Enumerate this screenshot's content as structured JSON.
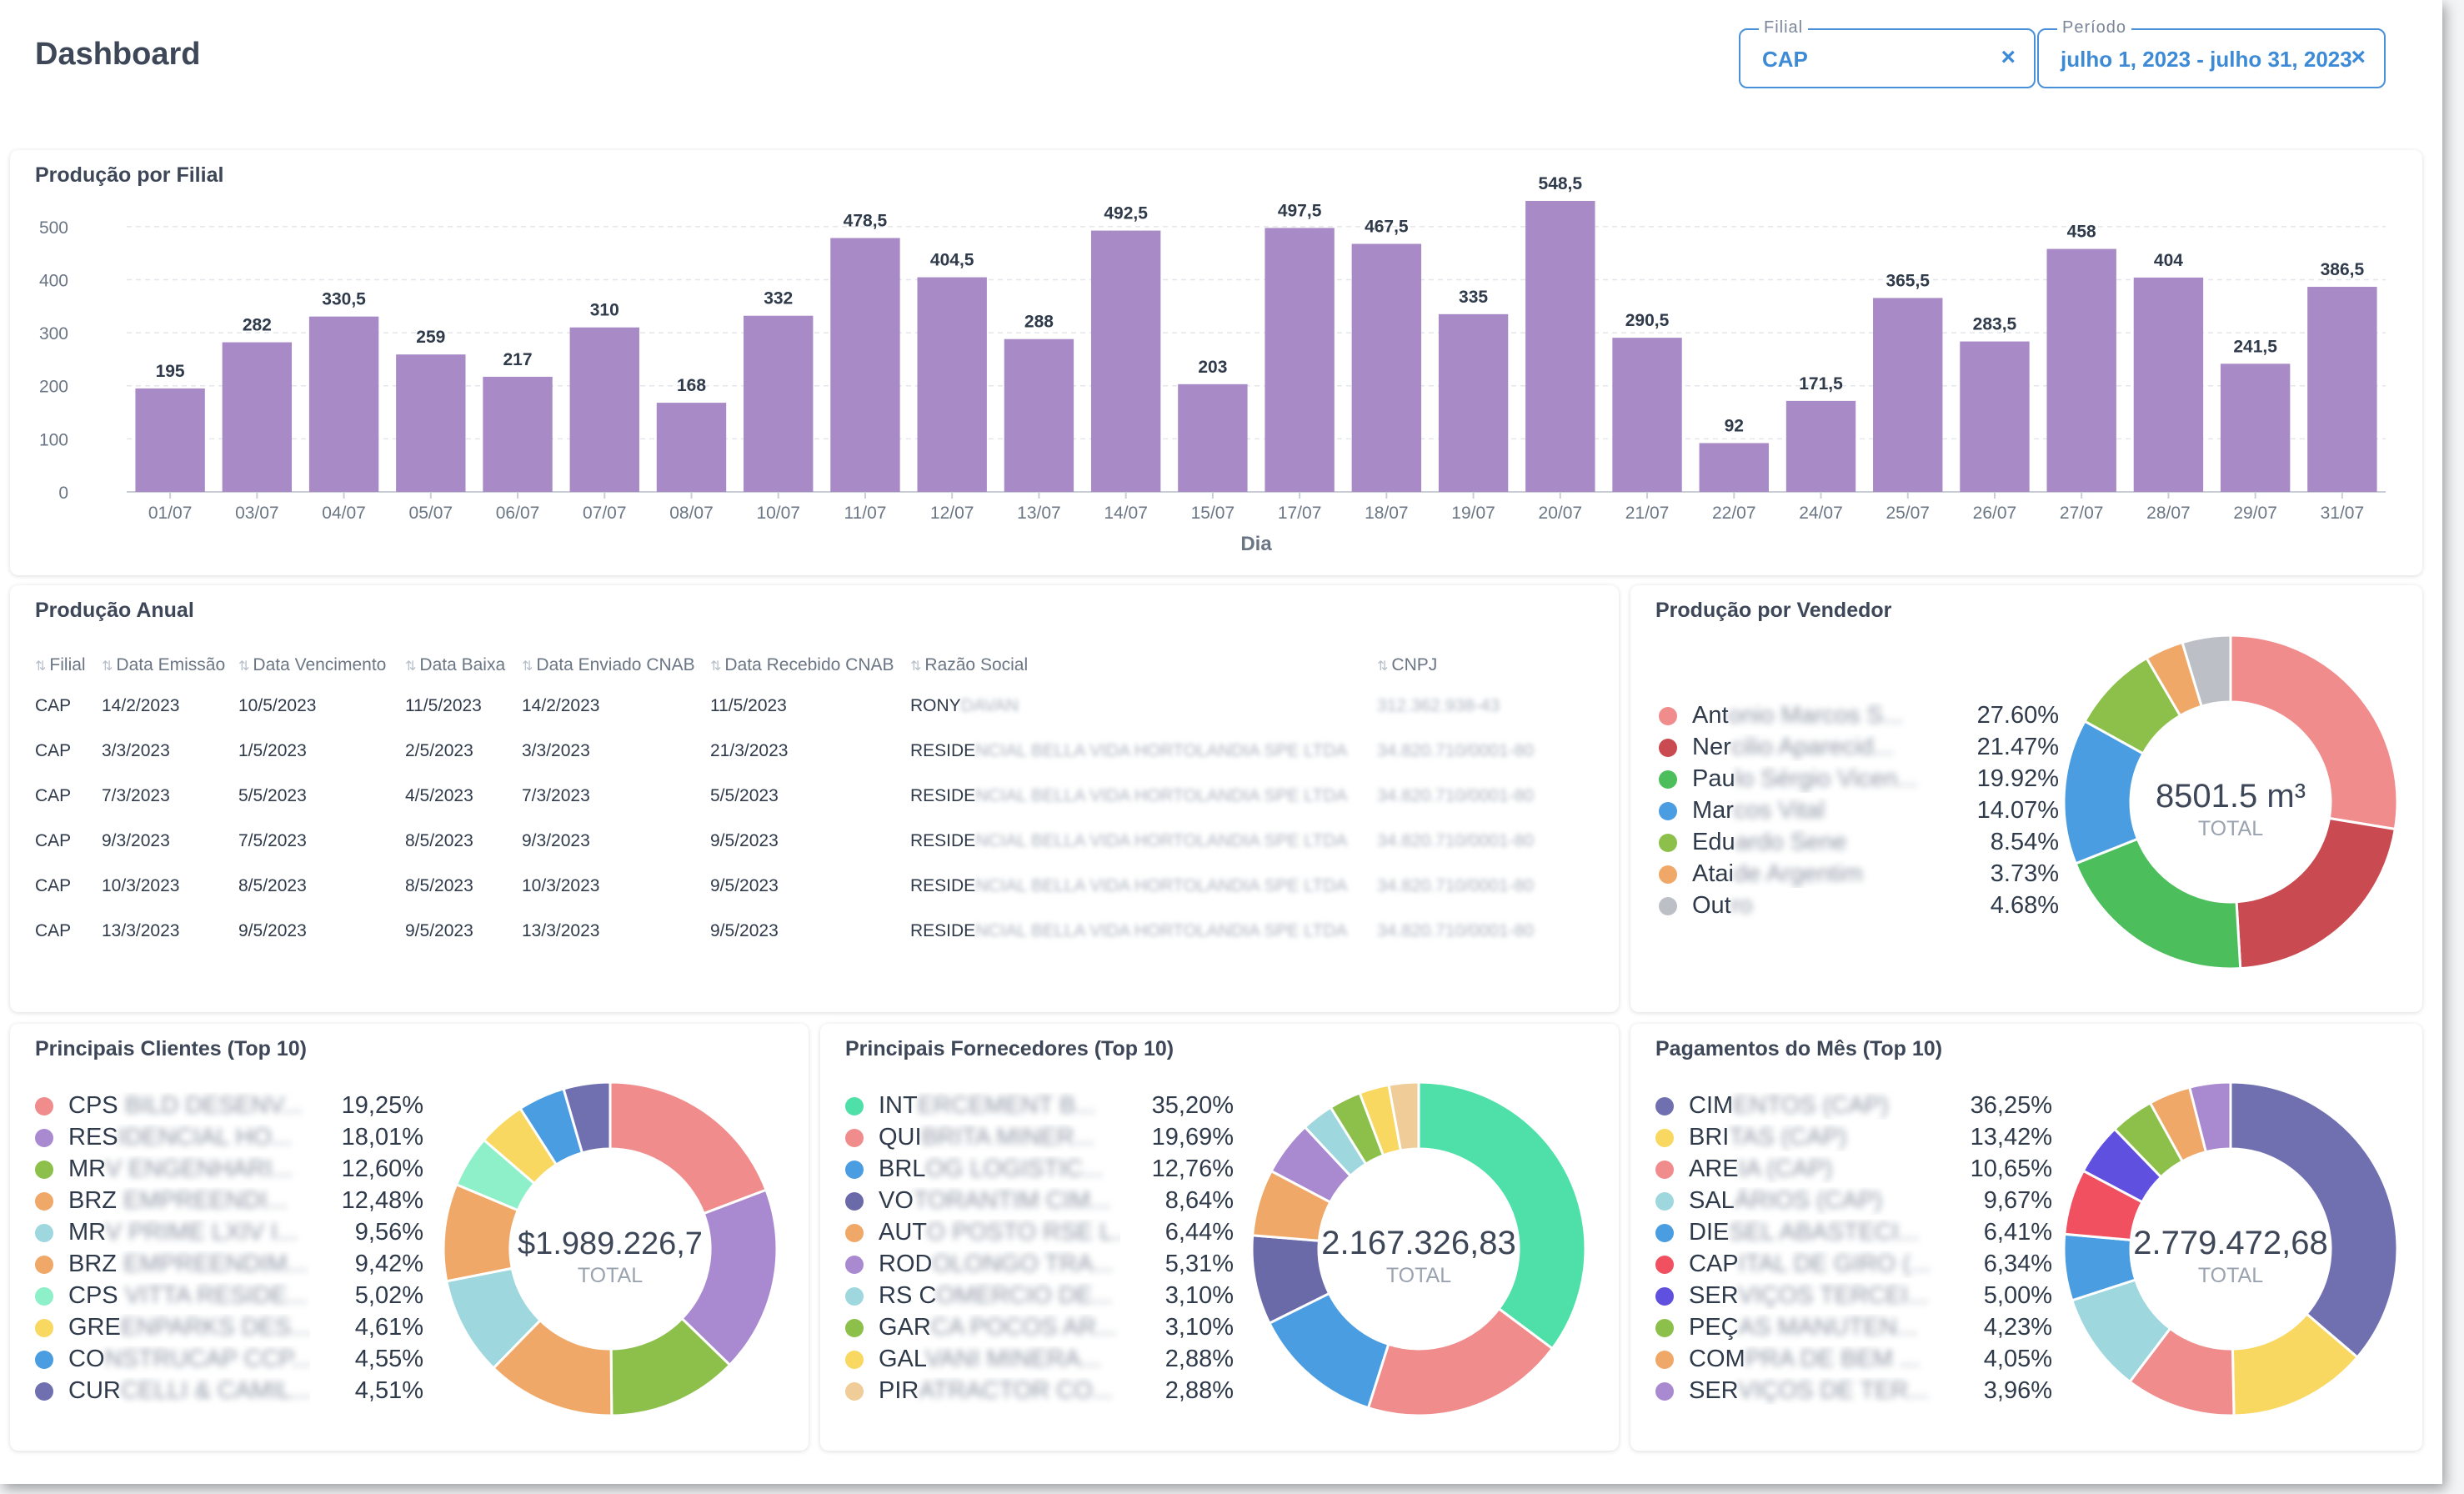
{
  "header": {
    "title": "Dashboard",
    "filters": [
      {
        "label": "Filial",
        "value": "CAP",
        "clear": "×"
      },
      {
        "label": "Período",
        "value": "julho 1, 2023 - julho 31, 2023",
        "clear": "×"
      }
    ]
  },
  "production_by_branch": {
    "title": "Produção por Filial",
    "chart_data": {
      "type": "bar",
      "title": "Produção por Filial",
      "xlabel": "Dia",
      "ylabel": "",
      "ylim": [
        0,
        550
      ],
      "yticks": [
        "0",
        "100",
        "200",
        "300",
        "400",
        "500"
      ],
      "grid": true,
      "color": "#a78ac6",
      "categories": [
        "01/07",
        "03/07",
        "04/07",
        "05/07",
        "06/07",
        "07/07",
        "08/07",
        "10/07",
        "11/07",
        "12/07",
        "13/07",
        "14/07",
        "15/07",
        "17/07",
        "18/07",
        "19/07",
        "20/07",
        "21/07",
        "22/07",
        "24/07",
        "25/07",
        "26/07",
        "27/07",
        "28/07",
        "29/07",
        "31/07"
      ],
      "values": [
        195,
        282,
        330.5,
        259,
        217,
        310,
        168,
        332,
        478.5,
        404.5,
        288,
        492.5,
        203,
        497.5,
        467.5,
        335,
        548.5,
        290.5,
        92,
        171.5,
        365.5,
        283.5,
        458,
        404,
        241.5,
        386.5
      ],
      "value_labels": [
        "195",
        "282",
        "330,5",
        "259",
        "217",
        "310",
        "168",
        "332",
        "478,5",
        "404,5",
        "288",
        "492,5",
        "203",
        "497,5",
        "467,5",
        "335",
        "548,5",
        "290,5",
        "92",
        "171,5",
        "365,5",
        "283,5",
        "458",
        "404",
        "241,5",
        "386,5"
      ]
    }
  },
  "annual_production": {
    "title": "Produção Anual",
    "columns": [
      "Filial",
      "Data Emissão",
      "Data Vencimento",
      "Data Baixa",
      "Data Enviado CNAB",
      "Data Recebido CNAB",
      "Razão Social",
      "CNPJ"
    ],
    "rows": [
      {
        "filial": "CAP",
        "emissao": "14/2/2023",
        "vencimento": "10/5/2023",
        "baixa": "11/5/2023",
        "enviado": "14/2/2023",
        "recebido": "11/5/2023",
        "razao": "RONY",
        "razao_hidden": "DAVAN",
        "cnpj_hidden": "312.362.938-43"
      },
      {
        "filial": "CAP",
        "emissao": "3/3/2023",
        "vencimento": "1/5/2023",
        "baixa": "2/5/2023",
        "enviado": "3/3/2023",
        "recebido": "21/3/2023",
        "razao": "RESIDE",
        "razao_hidden": "NCIAL BELLA VIDA HORTOLANDIA SPE LTDA",
        "cnpj_hidden": "34.820.710/0001-80"
      },
      {
        "filial": "CAP",
        "emissao": "7/3/2023",
        "vencimento": "5/5/2023",
        "baixa": "4/5/2023",
        "enviado": "7/3/2023",
        "recebido": "5/5/2023",
        "razao": "RESIDE",
        "razao_hidden": "NCIAL BELLA VIDA HORTOLANDIA SPE LTDA",
        "cnpj_hidden": "34.820.710/0001-80"
      },
      {
        "filial": "CAP",
        "emissao": "9/3/2023",
        "vencimento": "7/5/2023",
        "baixa": "8/5/2023",
        "enviado": "9/3/2023",
        "recebido": "9/5/2023",
        "razao": "RESIDE",
        "razao_hidden": "NCIAL BELLA VIDA HORTOLANDIA SPE LTDA",
        "cnpj_hidden": "34.820.710/0001-80"
      },
      {
        "filial": "CAP",
        "emissao": "10/3/2023",
        "vencimento": "8/5/2023",
        "baixa": "8/5/2023",
        "enviado": "10/3/2023",
        "recebido": "9/5/2023",
        "razao": "RESIDE",
        "razao_hidden": "NCIAL BELLA VIDA HORTOLANDIA SPE LTDA",
        "cnpj_hidden": "34.820.710/0001-80"
      },
      {
        "filial": "CAP",
        "emissao": "13/3/2023",
        "vencimento": "9/5/2023",
        "baixa": "9/5/2023",
        "enviado": "13/3/2023",
        "recebido": "9/5/2023",
        "razao": "RESIDE",
        "razao_hidden": "NCIAL BELLA VIDA HORTOLANDIA SPE LTDA",
        "cnpj_hidden": "34.820.710/0001-80"
      }
    ]
  },
  "production_by_seller": {
    "title": "Produção por Vendedor",
    "total_label": "TOTAL",
    "chart_data": {
      "type": "pie",
      "donut": true,
      "center_value": "8501.5 m³",
      "labels": [
        "Antonio Marcos S...",
        "Nercilio Aparecid...",
        "Paulo Sérgio Vicen...",
        "Marcos Vital",
        "Eduardo Sene",
        "Ataide Argentim",
        "Outro"
      ],
      "visible_prefix": [
        "Ant",
        "Ner",
        "Pau",
        "Mar",
        "Edu",
        "Atai",
        "Out"
      ],
      "values": [
        27.6,
        21.47,
        19.92,
        14.07,
        8.54,
        3.73,
        4.68
      ],
      "value_labels": [
        "27.60%",
        "21.47%",
        "19.92%",
        "14.07%",
        "8.54%",
        "3.73%",
        "4.68%"
      ],
      "colors": [
        "#f08c8c",
        "#c94a50",
        "#4cbf5c",
        "#4a9de0",
        "#8cc04a",
        "#f0a868",
        "#bcc0c6"
      ]
    }
  },
  "top_clients": {
    "title": "Principais Clientes (Top 10)",
    "total_label": "TOTAL",
    "chart_data": {
      "type": "pie",
      "donut": true,
      "center_value": "$1.989.226,7",
      "labels": [
        "CPS BILD DESENV...",
        "RESIDENCIAL HO...",
        "MRV ENGENHARI...",
        "BRZ EMPREENDI...",
        "MRV PRIME LXIV I...",
        "BRZ EMPREENDIM...",
        "CPS VITTA RESIDE...",
        "GREENPARKS DES...",
        "CONSTRUCAP CCP...",
        "CURCELLI & CAMIL..."
      ],
      "visible_prefix": [
        "CPS",
        "RES",
        "MR",
        "BRZ",
        "MR",
        "BRZ",
        "CPS",
        "GRE",
        "CO",
        "CUR"
      ],
      "values": [
        19.25,
        18.01,
        12.6,
        12.48,
        9.56,
        9.42,
        5.02,
        4.61,
        4.55,
        4.51
      ],
      "value_labels": [
        "19,25%",
        "18,01%",
        "12,60%",
        "12,48%",
        "9,56%",
        "9,42%",
        "5,02%",
        "4,61%",
        "4,55%",
        "4,51%"
      ],
      "colors": [
        "#f08c8c",
        "#a98ad0",
        "#8cc04a",
        "#f0a868",
        "#9ed8de",
        "#f0a868",
        "#8ef0c8",
        "#f8d860",
        "#4a9de0",
        "#7070b0"
      ]
    }
  },
  "top_suppliers": {
    "title": "Principais Fornecedores (Top 10)",
    "total_label": "TOTAL",
    "chart_data": {
      "type": "pie",
      "donut": true,
      "center_value": "2.167.326,83",
      "labels": [
        "INTERCEMENT B...",
        "QUIBRITA MINER...",
        "BRLOG LOGISTIC...",
        "VOTORANTIM CIM...",
        "AUTO POSTO RSE L...",
        "RODOLONGO TRA...",
        "RS COMERCIO DE...",
        "GARCA POCOS AR...",
        "GALVANI MINERA...",
        "PIRATRACTOR CO..."
      ],
      "visible_prefix": [
        "INT",
        "QUI",
        "BRL",
        "VO",
        "AUT",
        "ROD",
        "RS C",
        "GAR",
        "GAL",
        "PIR"
      ],
      "values": [
        35.2,
        19.69,
        12.76,
        8.64,
        6.44,
        5.31,
        3.1,
        3.1,
        2.88,
        2.88
      ],
      "value_labels": [
        "35,20%",
        "19,69%",
        "12,76%",
        "8,64%",
        "6,44%",
        "5,31%",
        "3,10%",
        "3,10%",
        "2,88%",
        "2,88%"
      ],
      "colors": [
        "#4ee0a8",
        "#f08c8c",
        "#4a9de0",
        "#6a6aa8",
        "#f0a868",
        "#a98ad0",
        "#9ed8de",
        "#8cc04a",
        "#f8d860",
        "#f0cc98"
      ]
    }
  },
  "monthly_payments": {
    "title": "Pagamentos do Mês (Top 10)",
    "total_label": "TOTAL",
    "chart_data": {
      "type": "pie",
      "donut": true,
      "center_value": "2.779.472,68",
      "labels": [
        "CIMENTOS (CAP)",
        "BRITAS (CAP)",
        "AREIA (CAP)",
        "SALÁRIOS (CAP)",
        "DIESEL ABASTECI...",
        "CAPITAL DE GIRO (...",
        "SERVIÇOS TERCEI...",
        "PEÇAS MANUTEN...",
        "COMPRA DE BEM ...",
        "SERVIÇOS DE TER..."
      ],
      "visible_prefix": [
        "CIM",
        "BRI",
        "ARE",
        "SAL",
        "DIE",
        "CAP",
        "SER",
        "PEÇ",
        "COM",
        "SER"
      ],
      "values": [
        36.25,
        13.42,
        10.65,
        9.67,
        6.41,
        6.34,
        5.0,
        4.23,
        4.05,
        3.96
      ],
      "value_labels": [
        "36,25%",
        "13,42%",
        "10,65%",
        "9,67%",
        "6,41%",
        "6,34%",
        "5,00%",
        "4,23%",
        "4,05%",
        "3,96%"
      ],
      "colors": [
        "#7070b0",
        "#f8d860",
        "#f08c8c",
        "#9ed8de",
        "#4a9de0",
        "#f05060",
        "#6050e0",
        "#8cc04a",
        "#f0a868",
        "#a98ad0"
      ]
    }
  }
}
